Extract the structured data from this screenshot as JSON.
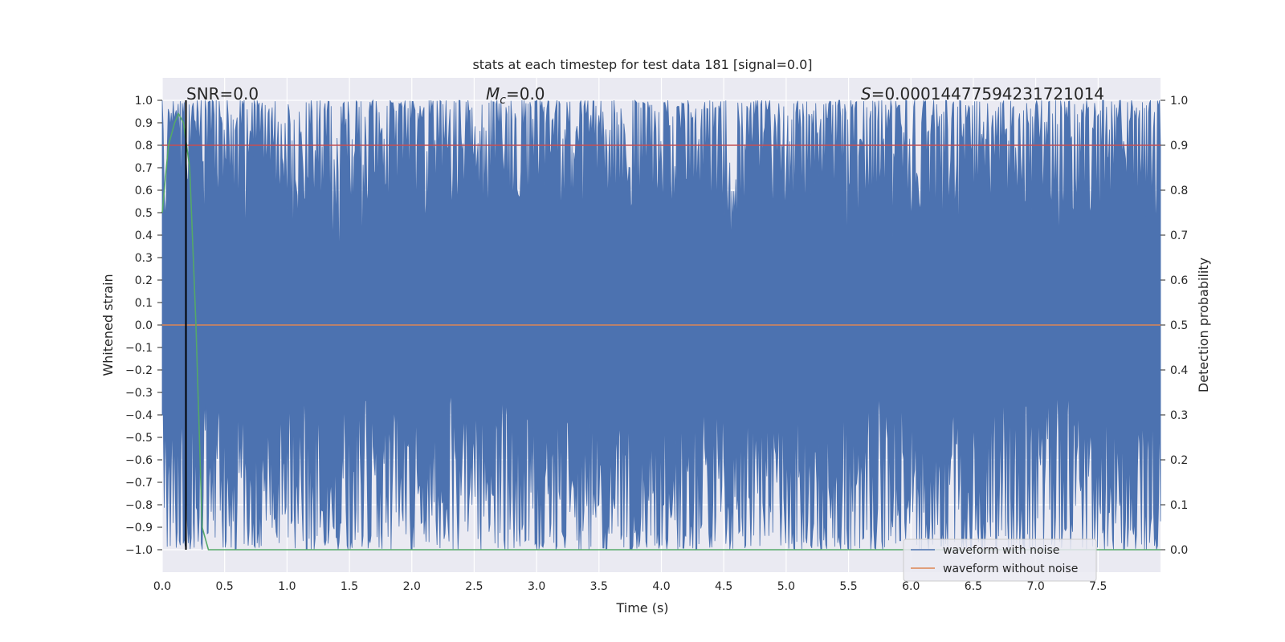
{
  "chart_data": {
    "type": "line",
    "title": "stats at each timestep for test data 181 [signal=0.0]",
    "xlabel": "Time (s)",
    "ylabel": "Whitened strain",
    "y2label": "Detection probability",
    "xlim": [
      0.0,
      8.0
    ],
    "ylim": [
      -1.1,
      1.1
    ],
    "y2lim": [
      -0.05,
      1.05
    ],
    "x_ticks": [
      "0.0",
      "0.5",
      "1.0",
      "1.5",
      "2.0",
      "2.5",
      "3.0",
      "3.5",
      "4.0",
      "4.5",
      "5.0",
      "5.5",
      "6.0",
      "6.5",
      "7.0",
      "7.5"
    ],
    "y_ticks": [
      "1.0",
      "0.9",
      "0.8",
      "0.7",
      "0.6",
      "0.5",
      "0.4",
      "0.3",
      "0.2",
      "0.1",
      "0.0",
      "−0.1",
      "−0.2",
      "−0.3",
      "−0.4",
      "−0.5",
      "−0.6",
      "−0.7",
      "−0.8",
      "−0.9",
      "−1.0"
    ],
    "y2_ticks": [
      "1.0",
      "0.9",
      "0.8",
      "0.7",
      "0.6",
      "0.5",
      "0.4",
      "0.3",
      "0.2",
      "0.1",
      "0.0"
    ],
    "grid": true,
    "legend_position": "lower-right",
    "annotations": {
      "snr": "SNR=0.0",
      "mc_symbol": "M",
      "mc_sub": "c",
      "mc_value": "=0.0",
      "s_symbol": "S",
      "s_value": "=0.0001447759423172101‌4"
    },
    "series": [
      {
        "name": "waveform with noise",
        "color": "#4c72b0",
        "axis": "left",
        "description_range": [
          -1.0,
          1.0
        ]
      },
      {
        "name": "waveform without noise",
        "color": "#dd8452",
        "axis": "left",
        "x": [
          0.0,
          8.0
        ],
        "y": [
          0.0,
          0.0
        ]
      },
      {
        "color": "#c44e52",
        "axis": "right",
        "x": [
          0.0,
          8.0
        ],
        "y": [
          0.9,
          0.9
        ]
      },
      {
        "color": "#55a868",
        "axis": "right",
        "x": [
          0.0,
          0.05,
          0.1,
          0.13,
          0.17,
          0.22,
          0.27,
          0.32,
          0.37,
          0.5,
          8.0
        ],
        "y": [
          0.75,
          0.9,
          0.95,
          0.97,
          0.95,
          0.85,
          0.5,
          0.05,
          0.0,
          0.0,
          0.0
        ]
      }
    ],
    "vline_x": 0.19
  }
}
